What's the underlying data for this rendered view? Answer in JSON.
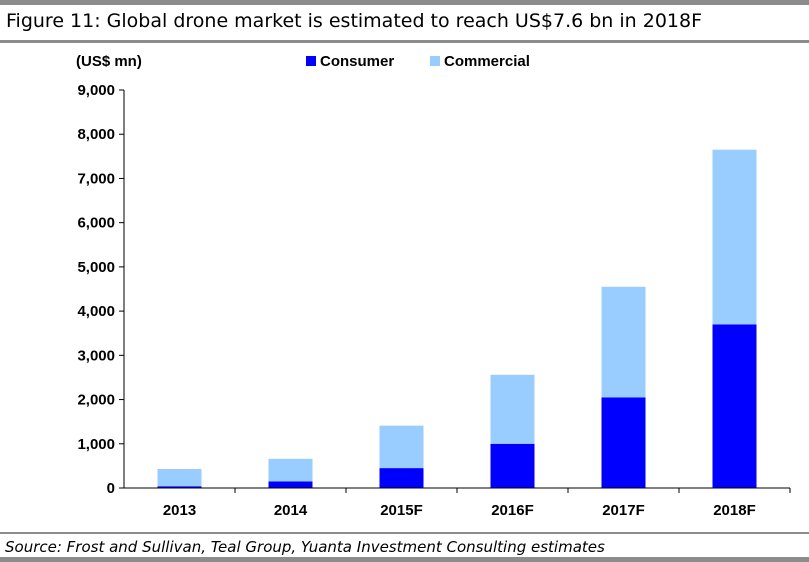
{
  "figure": {
    "title": "Figure 11: Global drone market is estimated to reach US$7.6 bn in 2018F",
    "source": "Source: Frost and Sullivan, Teal Group, Yuanta Investment Consulting estimates"
  },
  "chart_data": {
    "type": "bar",
    "stacked": true,
    "ylabel": "(US$ mn)",
    "ylim": [
      0,
      9000
    ],
    "ytick_step": 1000,
    "y_ticks": [
      "0",
      "1,000",
      "2,000",
      "3,000",
      "4,000",
      "5,000",
      "6,000",
      "7,000",
      "8,000",
      "9,000"
    ],
    "grid": false,
    "legend_position": "top",
    "categories": [
      "2013",
      "2014",
      "2015F",
      "2016F",
      "2017F",
      "2018F"
    ],
    "series": [
      {
        "name": "Consumer",
        "color": "#0000ff",
        "values": [
          40,
          150,
          450,
          1000,
          2050,
          3700
        ]
      },
      {
        "name": "Commercial",
        "color": "#99ccff",
        "values": [
          390,
          510,
          960,
          1560,
          2500,
          3950
        ]
      }
    ]
  }
}
